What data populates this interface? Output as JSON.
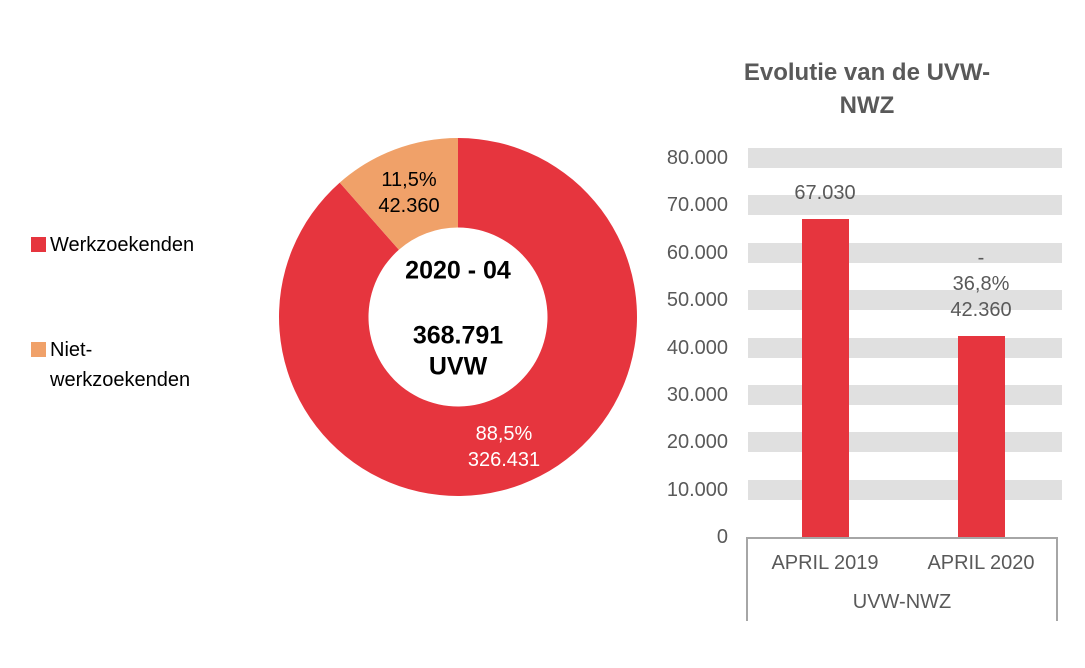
{
  "colors": {
    "red": "#e6353e",
    "orange": "#f0a169",
    "grid_band": "#e0e0e0",
    "axis_border": "#a6a6a6",
    "grey_text": "#595959",
    "black_text": "#000000",
    "white_label": "#ffffff"
  },
  "legend": {
    "items": [
      {
        "label": "Werkzoekenden",
        "color": "#e6353e"
      },
      {
        "label": "Niet-werkzoekenden",
        "color": "#f0a169"
      }
    ]
  },
  "chart_data": [
    {
      "type": "pie",
      "subtype": "donut",
      "center_label": {
        "period": "2020 - 04",
        "total": "368.791",
        "unit": "UVW"
      },
      "slices": [
        {
          "name": "Werkzoekenden",
          "value": 326431,
          "pct_label": "88,5%",
          "value_label": "326.431",
          "color": "#e6353e",
          "label_color": "#ffffff"
        },
        {
          "name": "Niet-werkzoekenden",
          "value": 42360,
          "pct_label": "11,5%",
          "value_label": "42.360",
          "color": "#f0a169",
          "label_color": "#000000"
        }
      ],
      "start_angle_deg": 0,
      "direction": "clockwise",
      "donut_hole_ratio": 0.5,
      "legend_position": "left"
    },
    {
      "type": "bar",
      "title": "Evolutie van de UVW-NWZ",
      "title_lines": [
        "Evolutie van de UVW-",
        "NWZ"
      ],
      "categories": [
        "APRIL 2019",
        "APRIL 2020"
      ],
      "values": [
        67030,
        42360
      ],
      "bar_labels": [
        [
          "67.030"
        ],
        [
          "-",
          "36,8%",
          "42.360"
        ]
      ],
      "xlabel": "UVW-NWZ",
      "ylabel": "",
      "ylim": [
        0,
        80000
      ],
      "ytick_step": 10000,
      "ytick_labels": [
        "0",
        "10.000",
        "20.000",
        "30.000",
        "40.000",
        "50.000",
        "60.000",
        "70.000",
        "80.000"
      ],
      "bar_color": "#e6353e",
      "grid": "horizontal-bands",
      "legend_position": "none"
    }
  ]
}
